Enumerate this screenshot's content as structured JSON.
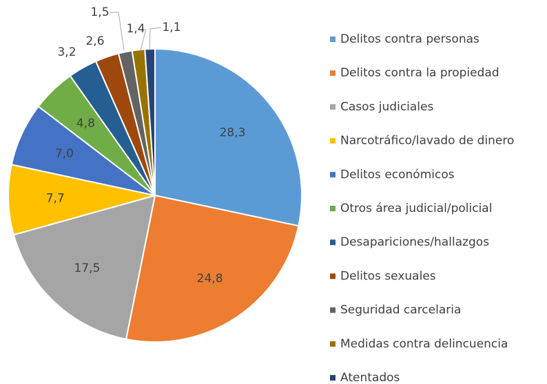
{
  "chart_data": {
    "type": "pie",
    "categories": [
      "Delitos contra personas",
      "Delitos contra la propiedad",
      "Casos judiciales",
      "Narcotráfico/lavado de dinero",
      "Delitos económicos",
      "Otros área judicial/policial",
      "Desapariciones/hallazgos",
      "Delitos sexuales",
      "Seguridad carcelaria",
      "Medidas contra delincuencia",
      "Atentados"
    ],
    "values": [
      28.3,
      24.8,
      17.5,
      7.7,
      7.0,
      4.8,
      3.2,
      2.6,
      1.5,
      1.4,
      1.1
    ],
    "value_labels": [
      "28,3",
      "24,8",
      "17,5",
      "7,7",
      "7,0",
      "4,8",
      "3,2",
      "2,6",
      "1,5",
      "1,4",
      "1,1"
    ],
    "colors": [
      "#5b9bd5",
      "#ed7d31",
      "#a5a5a5",
      "#ffc000",
      "#4472c4",
      "#70ad47",
      "#255e91",
      "#9e480e",
      "#636363",
      "#997300",
      "#264478"
    ],
    "legend": "right"
  }
}
